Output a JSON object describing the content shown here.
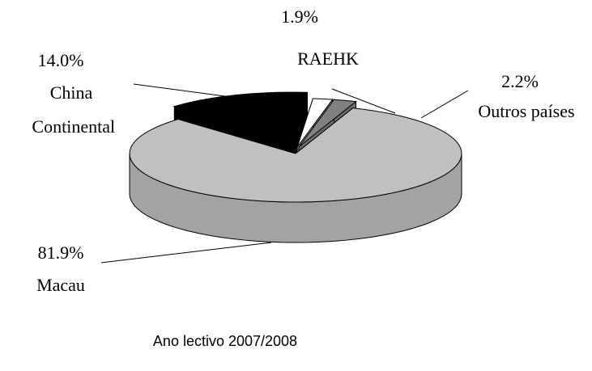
{
  "chart_data": {
    "type": "pie3d",
    "caption": "Ano lectivo 2007/2008",
    "categories": [
      "Macau",
      "China Continental",
      "RAEHK",
      "Outros países"
    ],
    "values": [
      81.9,
      14.0,
      1.9,
      2.2
    ],
    "value_labels": [
      "81.9%",
      "14.0%",
      "1.9%",
      "2.2%"
    ],
    "colors": [
      "#c0c0c0",
      "#000000",
      "#ffffff",
      "#808080"
    ]
  }
}
